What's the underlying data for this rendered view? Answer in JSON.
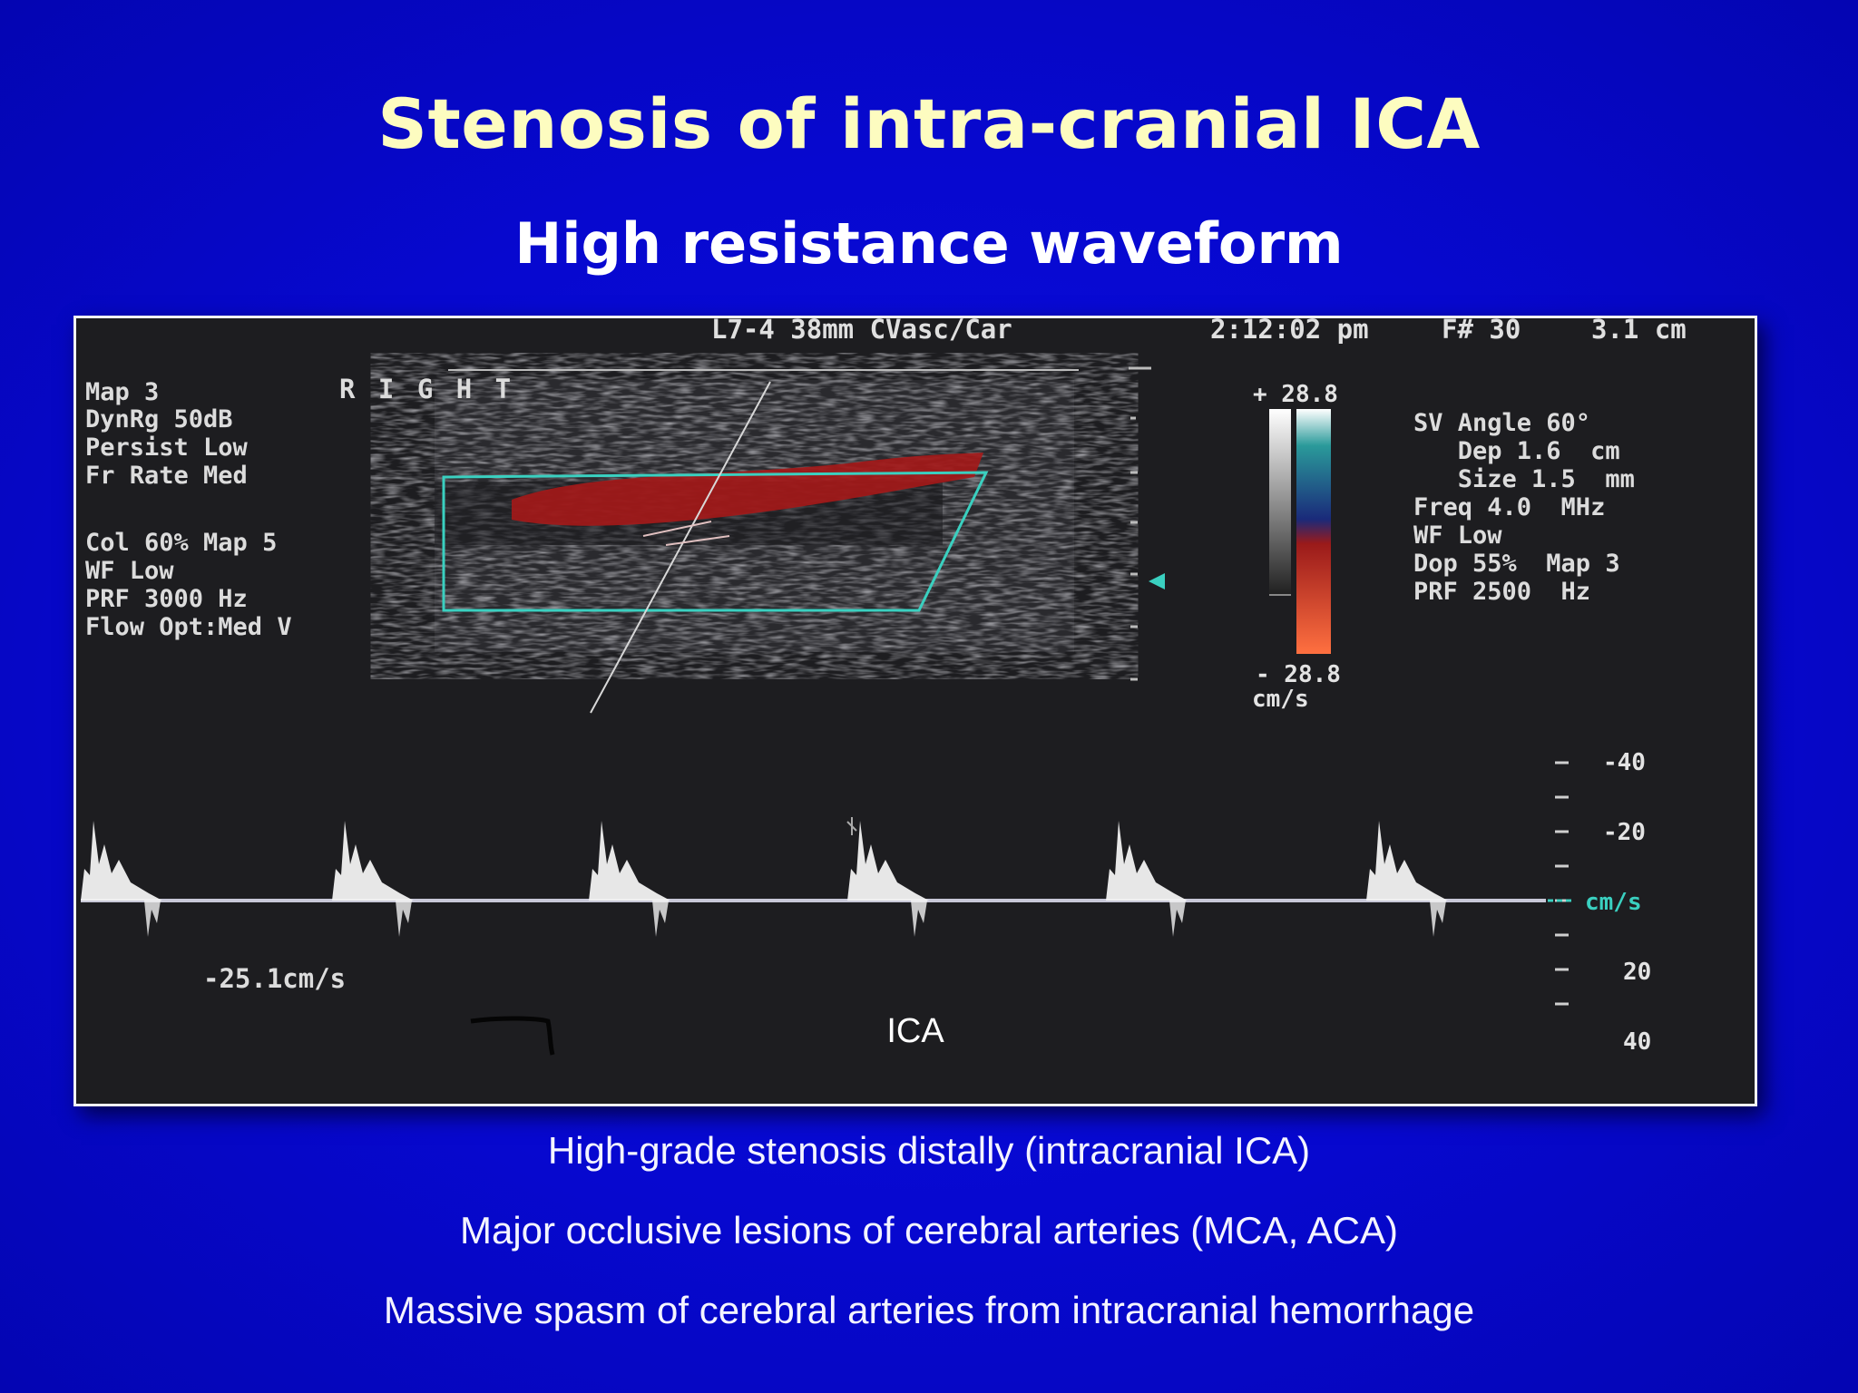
{
  "slide": {
    "title": "Stenosis of intra-cranial ICA",
    "subtitle": "High resistance waveform"
  },
  "ultrasound": {
    "header": {
      "probe": "L7-4 38mm CVasc/Car",
      "time": "2:12:02 pm",
      "frame": "F# 30",
      "depth": "3.1 cm"
    },
    "side_label": "R I G H T",
    "left_params": [
      "Map 3",
      "DynRg 50dB",
      "Persist Low",
      "Fr Rate Med"
    ],
    "left_params_2": [
      "Col 60%  Map 5",
      "WF Low",
      "PRF 3000  Hz",
      "Flow Opt:Med V"
    ],
    "right_params": [
      "SV Angle 60°",
      "   Dep 1.6  cm",
      "   Size 1.5  mm",
      "Freq 4.0  MHz",
      "WF Low",
      "Dop 55%  Map 3",
      "PRF 2500  Hz"
    ],
    "color_scale": {
      "top": "+ 28.8",
      "bottom": "- 28.8",
      "unit": "cm/s",
      "colors": [
        "#ffffff",
        "#2aa0a0",
        "#1a3a8a",
        "#b02020",
        "#ff6a3a"
      ]
    },
    "velocity_scale": [
      "-40",
      "-20",
      "cm/s",
      "20",
      "40"
    ],
    "measurement": "-25.1cm/s",
    "caption": "ICA"
  },
  "bullets": [
    "High-grade stenosis distally (intracranial ICA)",
    "Major occlusive lesions of cerebral arteries (MCA, ACA)",
    "Massive spasm of cerebral arteries from intracranial hemorrhage"
  ]
}
